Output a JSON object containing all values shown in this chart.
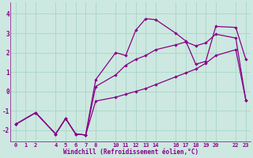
{
  "xlabel": "Windchill (Refroidissement éolien,°C)",
  "bg_color": "#cce8e0",
  "line_color": "#880088",
  "grid_color": "#aad4c8",
  "xlim": [
    -0.5,
    23.5
  ],
  "ylim": [
    -2.6,
    4.6
  ],
  "xticks": [
    0,
    1,
    2,
    4,
    5,
    6,
    7,
    8,
    10,
    11,
    12,
    13,
    14,
    16,
    17,
    18,
    19,
    20,
    22,
    23
  ],
  "yticks": [
    -2,
    -1,
    0,
    1,
    2,
    3,
    4
  ],
  "line1_x": [
    0,
    2,
    4,
    5,
    6,
    7,
    8,
    10,
    11,
    12,
    13,
    14,
    16,
    17,
    18,
    19,
    20,
    22,
    23
  ],
  "line1_y": [
    -1.7,
    -1.1,
    -2.2,
    -1.4,
    -2.2,
    -2.25,
    0.6,
    2.0,
    1.85,
    3.15,
    3.75,
    3.7,
    3.0,
    2.6,
    1.4,
    1.55,
    3.35,
    3.3,
    1.65
  ],
  "line2_x": [
    0,
    2,
    4,
    5,
    6,
    7,
    8,
    10,
    11,
    12,
    13,
    14,
    16,
    17,
    18,
    19,
    20,
    22,
    23
  ],
  "line2_y": [
    -1.7,
    -1.1,
    -2.2,
    -1.4,
    -2.2,
    -2.25,
    0.25,
    0.85,
    1.35,
    1.65,
    1.85,
    2.15,
    2.4,
    2.55,
    2.35,
    2.5,
    2.95,
    2.75,
    -0.45
  ],
  "line3_x": [
    0,
    2,
    4,
    5,
    6,
    7,
    8,
    10,
    11,
    12,
    13,
    14,
    16,
    17,
    18,
    19,
    20,
    22,
    23
  ],
  "line3_y": [
    -1.7,
    -1.1,
    -2.2,
    -1.4,
    -2.2,
    -2.25,
    -0.5,
    -0.3,
    -0.15,
    0.0,
    0.15,
    0.35,
    0.75,
    0.95,
    1.15,
    1.45,
    1.85,
    2.15,
    -0.45
  ]
}
